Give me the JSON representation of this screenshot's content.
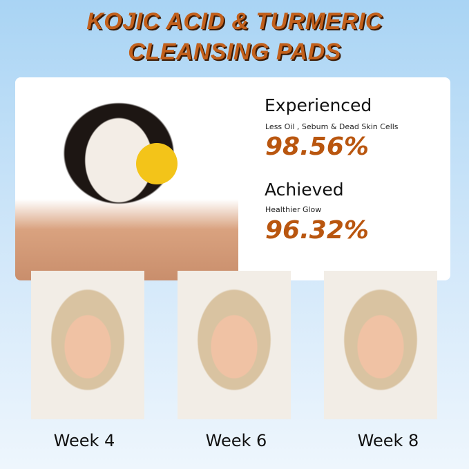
{
  "title": {
    "line1": "KOJIC ACID & TURMERIC",
    "line2": "CLEANSING PADS"
  },
  "stats": [
    {
      "heading": "Experienced",
      "subtitle": "Less Oil , Sebum & Dead Skin Cells",
      "value": "98.56%"
    },
    {
      "heading": "Achieved",
      "subtitle": "Healthier Glow",
      "value": "96.32%"
    }
  ],
  "weeks": [
    {
      "label": "Week 4"
    },
    {
      "label": "Week 6"
    },
    {
      "label": "Week 8"
    }
  ],
  "colors": {
    "accent": "#b9560f",
    "background": "#a9d4f4"
  }
}
